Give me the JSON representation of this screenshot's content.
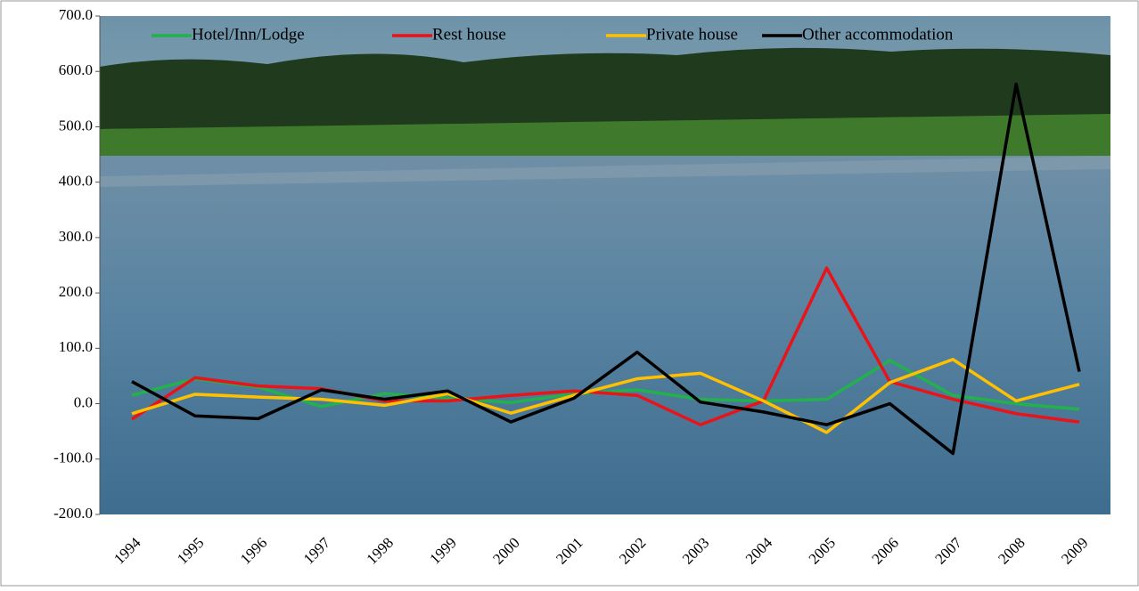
{
  "chart_data": {
    "type": "line",
    "categories": [
      "1994",
      "1995",
      "1996",
      "1997",
      "1998",
      "1999",
      "2000",
      "2001",
      "2002",
      "2003",
      "2004",
      "2005",
      "2006",
      "2007",
      "2008",
      "2009"
    ],
    "series": [
      {
        "name": "Hotel/Inn/Lodge",
        "color": "#22b14c",
        "values": [
          15,
          45,
          30,
          -5,
          18,
          10,
          2,
          18,
          25,
          8,
          5,
          8,
          78,
          15,
          0,
          -10
        ]
      },
      {
        "name": "Rest house",
        "color": "#e8141a",
        "values": [
          -28,
          47,
          32,
          27,
          5,
          5,
          15,
          23,
          15,
          -38,
          5,
          245,
          40,
          8,
          -18,
          -33
        ]
      },
      {
        "name": "Private house",
        "color": "#ffc000",
        "values": [
          -18,
          17,
          12,
          8,
          -3,
          18,
          -17,
          15,
          45,
          55,
          5,
          -52,
          38,
          80,
          5,
          35
        ]
      },
      {
        "name": "Other accommodation",
        "color": "#000000",
        "values": [
          40,
          -22,
          -27,
          25,
          8,
          23,
          -33,
          10,
          93,
          3,
          -15,
          -38,
          0,
          -90,
          577,
          58
        ]
      }
    ],
    "ylim": [
      -200,
      700
    ],
    "yticks": [
      {
        "value": -200,
        "label": "-200.0"
      },
      {
        "value": -100,
        "label": "-100.0"
      },
      {
        "value": 0,
        "label": "0.0"
      },
      {
        "value": 100,
        "label": "100.0"
      },
      {
        "value": 200,
        "label": "200.0"
      },
      {
        "value": 300,
        "label": "300.0"
      },
      {
        "value": 400,
        "label": "400.0"
      },
      {
        "value": 500,
        "label": "500.0"
      },
      {
        "value": 600,
        "label": "600.0"
      },
      {
        "value": 700,
        "label": "700.0"
      }
    ],
    "legend": "top"
  }
}
